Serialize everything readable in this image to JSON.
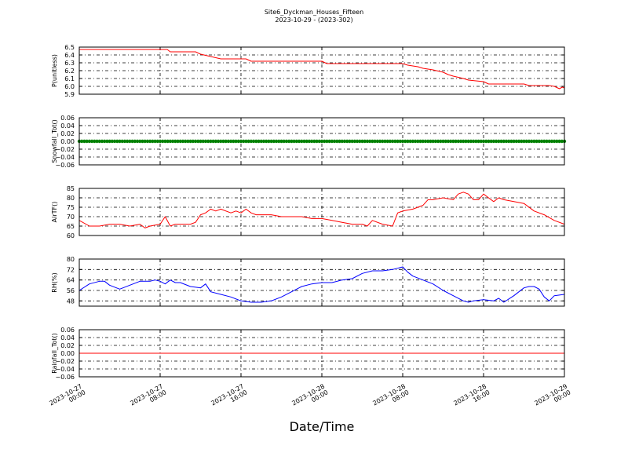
{
  "title": "Site6_Dyckman_Houses_Fifteen",
  "subtitle": "2023-10-29 - (2023-302)",
  "xlabel": "Date/Time",
  "x_ticks": [
    "2023-10-27 00:00",
    "2023-10-27 08:00",
    "2023-10-27 16:00",
    "2023-10-28 00:00",
    "2023-10-28 08:00",
    "2023-10-28 16:00",
    "2023-10-29 00:00"
  ],
  "colors": {
    "pressure": "#ff0000",
    "snowfall": "#008000",
    "airtemp": "#ff0000",
    "rh": "#0000ff",
    "rainfall": "#ff0000",
    "grid": "#000000"
  },
  "chart_data": [
    {
      "type": "line",
      "ylabel": "P(unitless)",
      "ylim": [
        5.9,
        6.5
      ],
      "y_ticks": [
        "5.9",
        "6.0",
        "6.1",
        "6.2",
        "6.3",
        "6.4",
        "6.5"
      ],
      "grid": true,
      "series": [
        {
          "color": "#ff0000",
          "x_hours": [
            0,
            3,
            8.7,
            9,
            11.5,
            12,
            13,
            14,
            16.5,
            17,
            24,
            24.5,
            32,
            32.5,
            33.5,
            34,
            35,
            36,
            36.5,
            37,
            38,
            38.5,
            40,
            40.5,
            44,
            44.5,
            46.5,
            47,
            47.5,
            47.8,
            48
          ],
          "values": [
            6.47,
            6.47,
            6.47,
            6.44,
            6.44,
            6.41,
            6.38,
            6.35,
            6.35,
            6.32,
            6.32,
            6.29,
            6.29,
            6.27,
            6.25,
            6.23,
            6.21,
            6.18,
            6.15,
            6.13,
            6.1,
            6.08,
            6.06,
            6.03,
            6.03,
            6.01,
            6.01,
            6.0,
            5.97,
            5.99,
            5.98
          ]
        }
      ]
    },
    {
      "type": "scatter",
      "ylabel": "Snowfall_Tot()",
      "ylim": [
        -0.06,
        0.06
      ],
      "y_ticks": [
        "−0.06",
        "−0.04",
        "−0.02",
        "0.00",
        "0.02",
        "0.04",
        "0.06"
      ],
      "grid": true,
      "series": [
        {
          "color": "#008000",
          "constant_value": 0.0,
          "x_range_hours": [
            0,
            48
          ],
          "interval_minutes": 15
        }
      ]
    },
    {
      "type": "line",
      "ylabel": "AirTF()",
      "ylim": [
        60,
        85
      ],
      "y_ticks": [
        "60",
        "65",
        "70",
        "75",
        "80",
        "85"
      ],
      "grid": true,
      "series": [
        {
          "color": "#ff0000",
          "x_hours": [
            0,
            1,
            2,
            3,
            4,
            5,
            6,
            6.5,
            7,
            8,
            8.5,
            9,
            9.5,
            10,
            11,
            11.5,
            12,
            12.5,
            13,
            13.5,
            14,
            15,
            15.5,
            16,
            16.5,
            17,
            17.5,
            18,
            19,
            20,
            21,
            22,
            23,
            24,
            25,
            26,
            27,
            28,
            28.5,
            29,
            30,
            31,
            31.5,
            32,
            33,
            34,
            34.5,
            35,
            36,
            37,
            37.5,
            38,
            38.5,
            39,
            39.5,
            40,
            40.5,
            41,
            41.5,
            42,
            43,
            44,
            45,
            46,
            47,
            48
          ],
          "values": [
            68,
            65,
            65,
            66,
            66,
            65,
            66,
            64,
            65,
            66,
            70,
            65,
            66,
            66,
            66,
            67,
            71,
            72,
            74,
            73,
            74,
            72,
            73,
            72,
            74,
            72,
            71,
            71,
            71,
            70,
            70,
            70,
            69,
            69,
            68,
            67,
            66,
            66,
            65,
            68,
            66,
            65,
            72,
            73,
            74,
            76,
            79,
            79,
            80,
            79,
            82,
            83,
            82,
            79,
            79,
            82,
            80,
            78,
            80,
            79,
            78,
            77,
            73,
            71,
            68,
            66
          ]
        }
      ]
    },
    {
      "type": "line",
      "ylabel": "RH(%)",
      "ylim": [
        44,
        80
      ],
      "y_ticks": [
        "48",
        "56",
        "64",
        "72",
        "80"
      ],
      "grid": true,
      "series": [
        {
          "color": "#0000ff",
          "x_hours": [
            0,
            1,
            2,
            2.5,
            3,
            4,
            5,
            6,
            7,
            7.5,
            8,
            8.5,
            9,
            9.5,
            10,
            11,
            12,
            12.5,
            13,
            14,
            15,
            16,
            17,
            18,
            19,
            20,
            21,
            22,
            23,
            24,
            25,
            26,
            27,
            28,
            29,
            30,
            31,
            31.5,
            32,
            32.5,
            33,
            34,
            35,
            36,
            37,
            38,
            38.5,
            39,
            40,
            41,
            41.5,
            42,
            43,
            44,
            44.5,
            45,
            45.5,
            46,
            46.5,
            47,
            48
          ],
          "values": [
            56,
            61,
            63,
            63,
            60,
            57,
            60,
            63,
            63,
            64,
            63,
            61,
            64,
            62,
            62,
            59,
            58,
            61,
            55,
            53,
            51,
            48,
            47,
            47,
            48,
            51,
            55,
            59,
            61,
            62,
            62,
            64,
            65,
            69,
            71,
            71,
            72,
            73,
            74,
            70,
            67,
            64,
            61,
            56,
            52,
            48,
            47,
            48,
            49,
            48,
            50,
            47,
            52,
            58,
            59,
            59,
            57,
            51,
            48,
            52,
            53
          ]
        }
      ]
    },
    {
      "type": "line",
      "ylabel": "Rainfall_Tot()",
      "ylim": [
        -0.06,
        0.06
      ],
      "y_ticks": [
        "−0.06",
        "−0.04",
        "−0.02",
        "0.00",
        "0.02",
        "0.04",
        "0.06"
      ],
      "grid": true,
      "series": [
        {
          "color": "#ff0000",
          "x_hours": [
            0,
            48
          ],
          "values": [
            0.0,
            0.0
          ]
        }
      ]
    }
  ]
}
